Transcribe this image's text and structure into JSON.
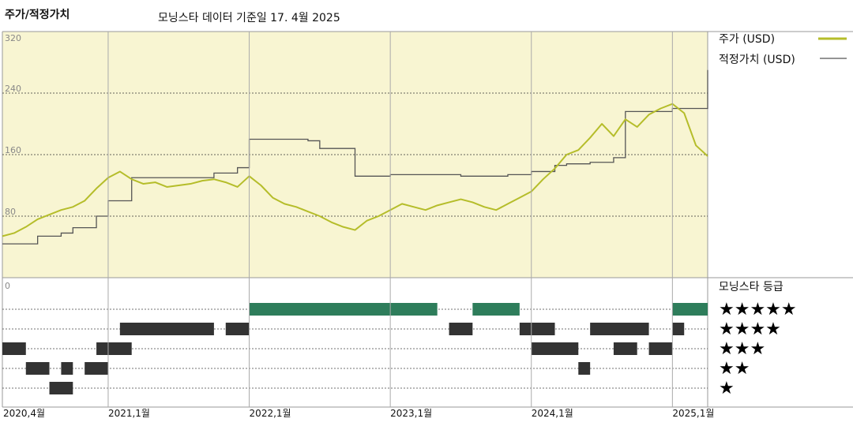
{
  "header": {
    "title": "주가/적정가치",
    "source": "모닝스타 데이터 기준일 17. 4월 2025"
  },
  "legend": {
    "price_label": "주가 (USD)",
    "fair_label": "적정가치 (USD)",
    "price_color": "#b5bd2a",
    "fair_color": "#555555"
  },
  "rating": {
    "title": "모닝스타 등급",
    "stars": [
      "★★★★★",
      "★★★★",
      "★★★",
      "★★",
      "★"
    ],
    "color_five": "#2e7d5b",
    "color_other": "#333333"
  },
  "chart_data": {
    "type": "line",
    "y_ticks": [
      "320",
      "240",
      "160",
      "80",
      "0"
    ],
    "ylim": [
      0,
      320
    ],
    "xlim": [
      "2020-04",
      "2025-04"
    ],
    "x_tick_labels": [
      "2020,4월",
      "2021,1월",
      "2022,1월",
      "2023,1월",
      "2024,1월",
      "2025,1월"
    ],
    "background_color": "#f8f5d2",
    "series": [
      {
        "name": "주가 (USD)",
        "x": [
          "2020-04",
          "2020-05",
          "2020-06",
          "2020-07",
          "2020-08",
          "2020-09",
          "2020-10",
          "2020-11",
          "2020-12",
          "2021-01",
          "2021-02",
          "2021-03",
          "2021-04",
          "2021-05",
          "2021-06",
          "2021-07",
          "2021-08",
          "2021-09",
          "2021-10",
          "2021-11",
          "2021-12",
          "2022-01",
          "2022-02",
          "2022-03",
          "2022-04",
          "2022-05",
          "2022-06",
          "2022-07",
          "2022-08",
          "2022-09",
          "2022-10",
          "2022-11",
          "2022-12",
          "2023-01",
          "2023-02",
          "2023-03",
          "2023-04",
          "2023-05",
          "2023-06",
          "2023-07",
          "2023-08",
          "2023-09",
          "2023-10",
          "2023-11",
          "2023-12",
          "2024-01",
          "2024-02",
          "2024-03",
          "2024-04",
          "2024-05",
          "2024-06",
          "2024-07",
          "2024-08",
          "2024-09",
          "2024-10",
          "2024-11",
          "2024-12",
          "2025-01",
          "2025-02",
          "2025-03",
          "2025-04"
        ],
        "y": [
          54,
          58,
          66,
          76,
          82,
          88,
          92,
          100,
          116,
          130,
          138,
          128,
          122,
          124,
          118,
          120,
          122,
          126,
          128,
          124,
          118,
          132,
          120,
          104,
          96,
          92,
          86,
          80,
          72,
          66,
          62,
          74,
          80,
          88,
          96,
          92,
          88,
          94,
          98,
          102,
          98,
          92,
          88,
          96,
          104,
          112,
          128,
          142,
          160,
          166,
          182,
          200,
          184,
          206,
          196,
          212,
          220,
          226,
          214,
          172,
          158
        ]
      },
      {
        "name": "적정가치 (USD)",
        "x": [
          "2020-04",
          "2020-07",
          "2020-09",
          "2020-10",
          "2020-12",
          "2021-01",
          "2021-03",
          "2021-10",
          "2021-12",
          "2022-01",
          "2022-06",
          "2022-07",
          "2022-10",
          "2023-01",
          "2023-06",
          "2023-07",
          "2023-11",
          "2024-01",
          "2024-03",
          "2024-04",
          "2024-06",
          "2024-08",
          "2024-09",
          "2025-01",
          "2025-04"
        ],
        "y": [
          44,
          54,
          58,
          65,
          80,
          100,
          130,
          136,
          143,
          180,
          178,
          168,
          132,
          134,
          134,
          132,
          134,
          138,
          146,
          148,
          150,
          156,
          216,
          220,
          270
        ]
      }
    ],
    "ratings_timeline": [
      {
        "stars": 5,
        "from": "2022-01",
        "to": "2023-05"
      },
      {
        "stars": 5,
        "from": "2023-08",
        "to": "2023-12"
      },
      {
        "stars": 5,
        "from": "2025-01",
        "to": "2025-04"
      },
      {
        "stars": 4,
        "from": "2021-02",
        "to": "2021-10"
      },
      {
        "stars": 4,
        "from": "2021-11",
        "to": "2022-01"
      },
      {
        "stars": 4,
        "from": "2023-06",
        "to": "2023-08"
      },
      {
        "stars": 4,
        "from": "2023-12",
        "to": "2024-03"
      },
      {
        "stars": 4,
        "from": "2024-06",
        "to": "2024-11"
      },
      {
        "stars": 4,
        "from": "2025-01",
        "to": "2025-02"
      },
      {
        "stars": 3,
        "from": "2020-04",
        "to": "2020-06"
      },
      {
        "stars": 3,
        "from": "2020-12",
        "to": "2021-01"
      },
      {
        "stars": 3,
        "from": "2021-01",
        "to": "2021-03"
      },
      {
        "stars": 3,
        "from": "2024-01",
        "to": "2024-05"
      },
      {
        "stars": 3,
        "from": "2024-08",
        "to": "2024-10"
      },
      {
        "stars": 3,
        "from": "2024-11",
        "to": "2025-01"
      },
      {
        "stars": 2,
        "from": "2020-06",
        "to": "2020-08"
      },
      {
        "stars": 2,
        "from": "2020-09",
        "to": "2020-10"
      },
      {
        "stars": 2,
        "from": "2020-11",
        "to": "2021-01"
      },
      {
        "stars": 2,
        "from": "2024-05",
        "to": "2024-06"
      },
      {
        "stars": 1,
        "from": "2020-08",
        "to": "2020-10"
      }
    ]
  }
}
